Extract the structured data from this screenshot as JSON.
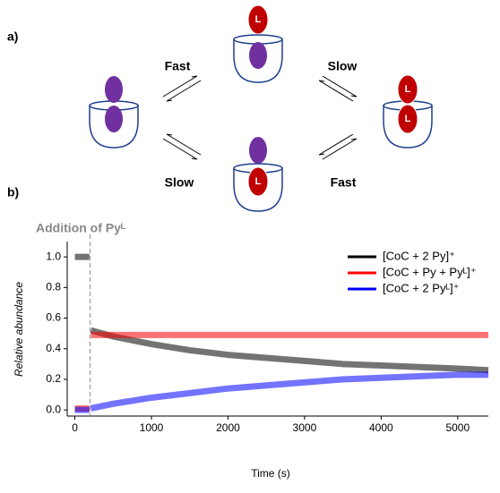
{
  "panels": {
    "a": {
      "label": "a)",
      "rates": [
        "Fast",
        "Slow",
        "Slow",
        "Fast"
      ],
      "ligand": "L"
    }
  },
  "chart_data": {
    "type": "line",
    "panel_label": "b)",
    "annotation": "Addition of Pyᴸ",
    "annotation_x": 200,
    "xlabel": "Time (s)",
    "ylabel": "Relative abundance",
    "x": [
      0,
      100,
      190,
      200,
      210,
      500,
      1000,
      1500,
      2000,
      2500,
      3000,
      3500,
      4000,
      4500,
      5000,
      5400
    ],
    "series": [
      {
        "name": "[CoC + 2 Py]⁺",
        "color": "#000000",
        "values": [
          1.0,
          1.0,
          1.0,
          null,
          0.52,
          0.48,
          0.43,
          0.39,
          0.36,
          0.34,
          0.32,
          0.3,
          0.29,
          0.28,
          0.27,
          0.26
        ]
      },
      {
        "name": "[CoC + Py + Pyᴸ]⁺",
        "color": "#ff0000",
        "values": [
          0.01,
          0.01,
          0.01,
          null,
          0.49,
          0.49,
          0.49,
          0.49,
          0.49,
          0.49,
          0.49,
          0.49,
          0.49,
          0.49,
          0.49,
          0.49
        ]
      },
      {
        "name": "[CoC + 2 Pyᴸ]⁺",
        "color": "#0000ff",
        "values": [
          0,
          0,
          0,
          null,
          0.01,
          0.04,
          0.08,
          0.11,
          0.14,
          0.16,
          0.18,
          0.2,
          0.21,
          0.22,
          0.23,
          0.23
        ]
      }
    ],
    "xlim": [
      -100,
      5400
    ],
    "ylim": [
      -0.04,
      1.1
    ],
    "xticks": [
      0,
      1000,
      2000,
      3000,
      4000,
      5000
    ],
    "yticks": [
      {
        "value": 0,
        "label": "0.0"
      },
      0.2,
      0.4,
      0.6,
      0.8,
      {
        "value": 1,
        "label": "1.0"
      }
    ],
    "legend": "top-right"
  }
}
